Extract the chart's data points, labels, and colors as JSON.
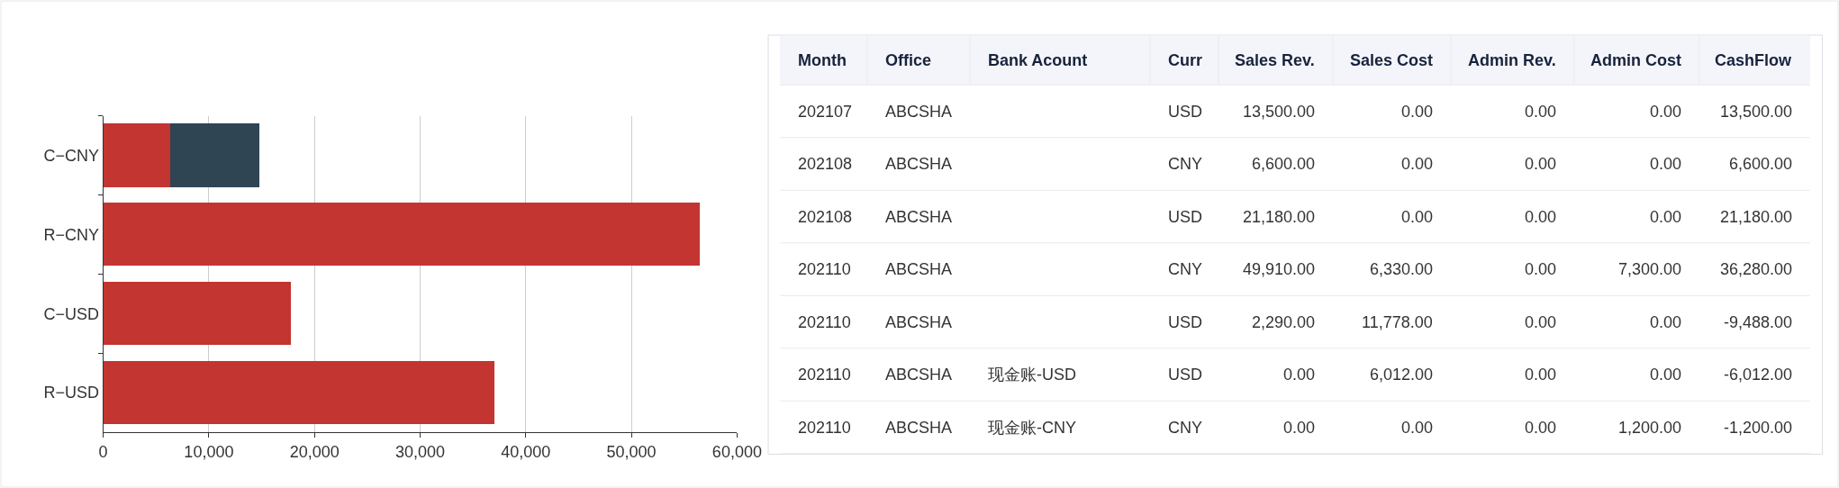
{
  "chart_data": [
    {
      "type": "bar",
      "orientation": "horizontal",
      "stacked": true,
      "categories": [
        "C−CNY",
        "R−CNY",
        "C−USD",
        "R−USD"
      ],
      "series": [
        {
          "color": "#c23531",
          "values": [
            6300,
            56500,
            17800,
            37000
          ]
        },
        {
          "color": "#2f4554",
          "values": [
            8500,
            null,
            null,
            null
          ]
        }
      ],
      "xlim": [
        0,
        60000
      ],
      "xticks": [
        0,
        {
          "value": 10000,
          "label": "10,000"
        },
        {
          "value": 20000,
          "label": "20,000"
        },
        {
          "value": 30000,
          "label": "30,000"
        },
        {
          "value": 40000,
          "label": "40,000"
        },
        {
          "value": 50000,
          "label": "50,000"
        },
        {
          "value": 60000,
          "label": "60,000"
        }
      ],
      "grid": "x"
    },
    {
      "type": "other",
      "categories": [
        "Month",
        "Office",
        "Bank Acount",
        "Curr",
        "Sales Rev.",
        "Sales Cost",
        "Admin Rev.",
        "Admin Cost",
        "CashFlow"
      ],
      "cell_labels": [
        [
          "202107",
          "ABCSHA",
          null,
          "USD",
          "13,500.00",
          "0.00",
          "0.00",
          "0.00",
          "13,500.00"
        ],
        [
          "202108",
          "ABCSHA",
          null,
          "CNY",
          "6,600.00",
          "0.00",
          "0.00",
          "0.00",
          "6,600.00"
        ],
        [
          "202108",
          "ABCSHA",
          null,
          "USD",
          "21,180.00",
          "0.00",
          "0.00",
          "0.00",
          "21,180.00"
        ],
        [
          "202110",
          "ABCSHA",
          null,
          "CNY",
          "49,910.00",
          "6,330.00",
          "0.00",
          "7,300.00",
          "36,280.00"
        ],
        [
          "202110",
          "ABCSHA",
          null,
          "USD",
          "2,290.00",
          "11,778.00",
          "0.00",
          "0.00",
          "-9,488.00"
        ],
        [
          "202110",
          "ABCSHA",
          "现金账-USD",
          "USD",
          "0.00",
          "6,012.00",
          "0.00",
          "0.00",
          "-6,012.00"
        ],
        [
          "202110",
          "ABCSHA",
          "现金账-CNY",
          "CNY",
          "0.00",
          "0.00",
          "0.00",
          "1,200.00",
          "-1,200.00"
        ]
      ]
    }
  ]
}
